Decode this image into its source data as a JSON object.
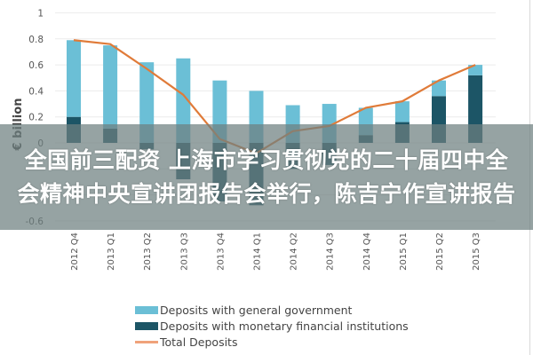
{
  "chart_data": {
    "type": "bar",
    "stacked": true,
    "title": "",
    "xlabel": "",
    "ylabel": "€ billion",
    "ylim": [
      -0.6,
      1.0
    ],
    "yticks": [
      1,
      0.8,
      0.6,
      0.4,
      0.2,
      0,
      -0.6
    ],
    "ytick_labels": [
      "1",
      "0.8",
      "0.6",
      "0.4",
      "0.2",
      "0",
      "-0.6"
    ],
    "grid": true,
    "legend_position": "bottom",
    "categories": [
      "2012 Q4",
      "2013 Q1",
      "2013 Q2",
      "2013 Q3",
      "2013 Q4",
      "2014 Q1",
      "2014 Q2",
      "2014 Q3",
      "2014 Q4",
      "2015 Q1",
      "2015 Q2",
      "2015 Q3"
    ],
    "series": [
      {
        "name": "Deposits with general government",
        "type": "bar",
        "color": "#6bbfd6",
        "values": [
          0.59,
          0.64,
          0.62,
          0.65,
          0.48,
          0.4,
          0.29,
          0.3,
          0.21,
          0.16,
          0.12,
          0.08
        ]
      },
      {
        "name": "Deposits with monetary financial institutions",
        "type": "bar",
        "color": "#1c5566",
        "values": [
          0.2,
          0.11,
          -0.05,
          -0.28,
          -0.45,
          -0.48,
          -0.2,
          -0.17,
          0.06,
          0.16,
          0.36,
          0.52
        ]
      },
      {
        "name": "Total Deposits",
        "type": "line",
        "color": "#e07b39",
        "values": [
          0.79,
          0.76,
          0.57,
          0.37,
          0.03,
          -0.08,
          0.09,
          0.13,
          0.27,
          0.32,
          0.48,
          0.6
        ]
      }
    ]
  },
  "legend": {
    "items": [
      {
        "label": "Deposits with general government",
        "color": "#6bbfd6",
        "kind": "bar"
      },
      {
        "label": "Deposits with monetary financial institutions",
        "color": "#1c5566",
        "kind": "bar"
      },
      {
        "label": "Total Deposits",
        "color": "#f0a27a",
        "kind": "line"
      }
    ]
  },
  "overlay": {
    "line1": "全国前三配资 上海市学习贯彻党的二十届四中全",
    "line2": "会精神中央宣讲团报告会举行，陈吉宁作宣讲报告"
  }
}
